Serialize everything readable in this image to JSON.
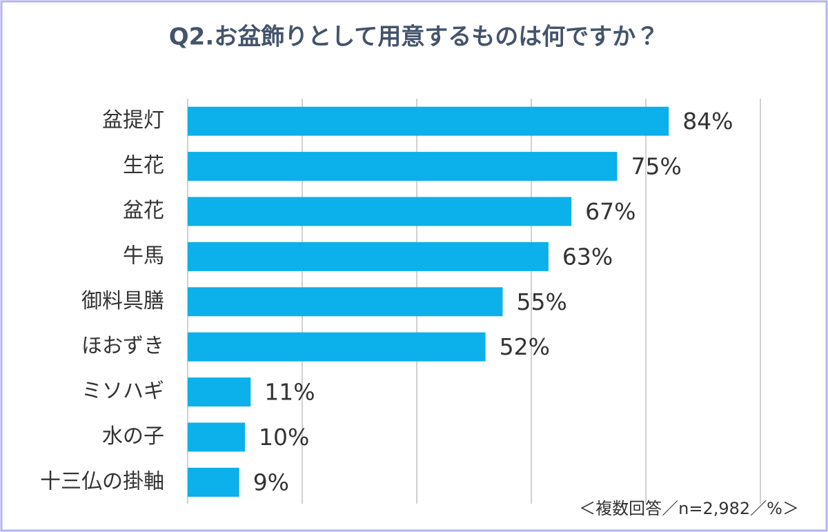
{
  "chart_data": {
    "type": "barh",
    "title": "Q2.お盆飾りとして用意するものは何ですか？",
    "note": "＜複数回答／n=2,982／%＞",
    "categories": [
      "盆提灯",
      "生花",
      "盆花",
      "牛馬",
      "御料具膳",
      "ほおずき",
      "ミソハギ",
      "水の子",
      "十三仏の掛軸"
    ],
    "values": [
      84,
      75,
      67,
      63,
      55,
      52,
      11,
      10,
      9
    ],
    "value_labels": [
      "84%",
      "75%",
      "67%",
      "63%",
      "55%",
      "52%",
      "11%",
      "10%",
      "9%"
    ],
    "color": "#0cb0ea",
    "xlim": [
      0,
      100
    ],
    "xticks": [
      0,
      20,
      40,
      60,
      80,
      100
    ],
    "grid": true
  }
}
